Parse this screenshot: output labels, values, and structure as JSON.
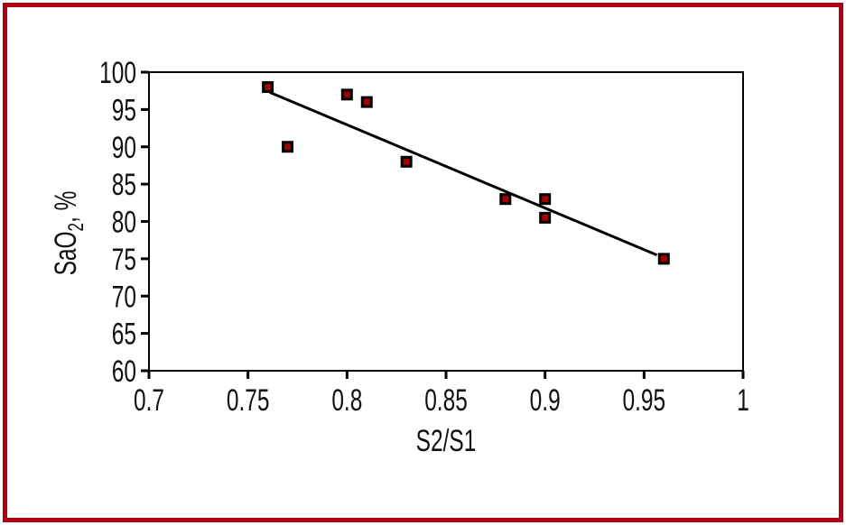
{
  "figure": {
    "frame_color": "#B10014",
    "background_color": "#FFFFFF"
  },
  "chart_data": {
    "type": "scatter",
    "title": "",
    "xlabel": "S2/S1",
    "ylabel": "SaO2, %",
    "ylabel_parts": {
      "prefix": "SaO",
      "subscript": "2",
      "suffix": ", %"
    },
    "xlim": [
      0.7,
      1.0
    ],
    "ylim": [
      60,
      100
    ],
    "x_ticks": [
      {
        "value": 0.7,
        "label": "0.7"
      },
      {
        "value": 0.75,
        "label": "0.75"
      },
      {
        "value": 0.8,
        "label": "0.8"
      },
      {
        "value": 0.85,
        "label": "0.85"
      },
      {
        "value": 0.9,
        "label": "0.9"
      },
      {
        "value": 0.95,
        "label": "0.95"
      },
      {
        "value": 1.0,
        "label": "1"
      }
    ],
    "y_ticks": [
      {
        "value": 100,
        "label": "100"
      },
      {
        "value": 95,
        "label": "95"
      },
      {
        "value": 90,
        "label": "90"
      },
      {
        "value": 85,
        "label": "85"
      },
      {
        "value": 80,
        "label": "80"
      },
      {
        "value": 75,
        "label": "75"
      },
      {
        "value": 70,
        "label": "70"
      },
      {
        "value": 65,
        "label": "65"
      },
      {
        "value": 60,
        "label": "60"
      }
    ],
    "grid": false,
    "legend": false,
    "axis_color": "#000000",
    "text_color": "#111111",
    "marker": {
      "shape": "square",
      "fill": "#A40000",
      "stroke": "#000000"
    },
    "points": [
      {
        "x": 0.76,
        "y": 98
      },
      {
        "x": 0.77,
        "y": 90
      },
      {
        "x": 0.8,
        "y": 97
      },
      {
        "x": 0.81,
        "y": 96
      },
      {
        "x": 0.83,
        "y": 88
      },
      {
        "x": 0.88,
        "y": 83
      },
      {
        "x": 0.9,
        "y": 83
      },
      {
        "x": 0.9,
        "y": 80.5
      },
      {
        "x": 0.96,
        "y": 75
      }
    ],
    "trendline": {
      "x1": 0.761,
      "y1": 97.3,
      "x2": 0.9565,
      "y2": 75.5,
      "color": "#000000"
    }
  }
}
